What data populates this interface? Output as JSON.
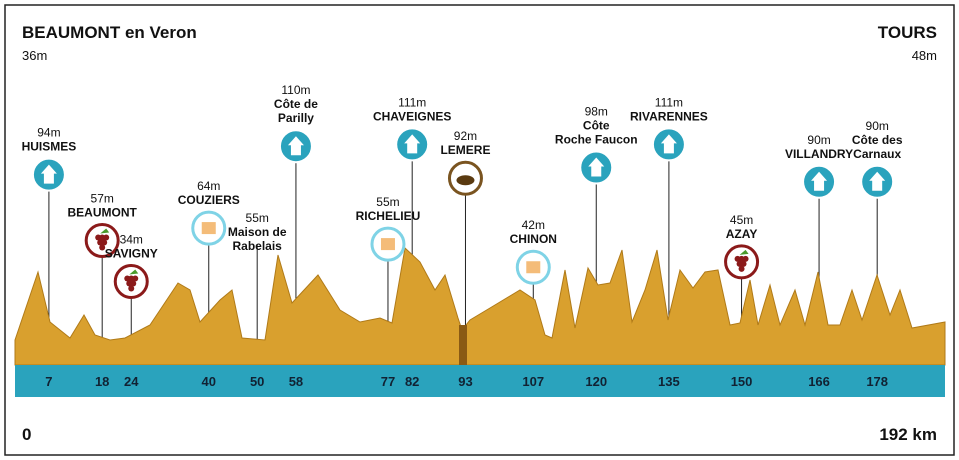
{
  "header": {
    "start_name": "BEAUMONT en Veron",
    "start_altitude": "36m",
    "finish_name": "TOURS",
    "finish_altitude": "48m"
  },
  "distance": {
    "start": "0",
    "finish": "192 km",
    "total": 192
  },
  "waypoints": [
    {
      "km": 7,
      "name": [
        "HUISMES"
      ],
      "altitude": 94,
      "altitude_label": "94m",
      "icon": "climb"
    },
    {
      "km": 18,
      "name": [
        "BEAUMONT"
      ],
      "altitude": 57,
      "altitude_label": "57m",
      "icon": "wine"
    },
    {
      "km": 24,
      "name": [
        "SAVIGNY"
      ],
      "altitude": 34,
      "altitude_label": "34m",
      "icon": "wine"
    },
    {
      "km": 40,
      "name": [
        "COUZIERS"
      ],
      "altitude": 64,
      "altitude_label": "64m",
      "icon": "logo"
    },
    {
      "km": 50,
      "name": [
        "Maison de",
        "Rabelais"
      ],
      "altitude": 55,
      "altitude_label": "55m",
      "icon": "none"
    },
    {
      "km": 58,
      "name": [
        "Côte de",
        "Parilly"
      ],
      "altitude": 110,
      "altitude_label": "110m",
      "icon": "climb"
    },
    {
      "km": 77,
      "name": [
        "RICHELIEU"
      ],
      "altitude": 55,
      "altitude_label": "55m",
      "icon": "logo"
    },
    {
      "km": 82,
      "name": [
        "CHAVEIGNES"
      ],
      "altitude": 111,
      "altitude_label": "111m",
      "icon": "climb"
    },
    {
      "km": 93,
      "name": [
        "LEMERE"
      ],
      "altitude": 92,
      "altitude_label": "92m",
      "icon": "food"
    },
    {
      "km": 107,
      "name": [
        "CHINON"
      ],
      "altitude": 42,
      "altitude_label": "42m",
      "icon": "logo"
    },
    {
      "km": 120,
      "name": [
        "Côte",
        "Roche Faucon"
      ],
      "altitude": 98,
      "altitude_label": "98m",
      "icon": "climb"
    },
    {
      "km": 135,
      "name": [
        "RIVARENNES"
      ],
      "altitude": 111,
      "altitude_label": "111m",
      "icon": "climb"
    },
    {
      "km": 150,
      "name": [
        "AZAY"
      ],
      "altitude": 45,
      "altitude_label": "45m",
      "icon": "wine"
    },
    {
      "km": 166,
      "name": [
        "VILLANDRY"
      ],
      "altitude": 90,
      "altitude_label": "90m",
      "icon": "climb"
    },
    {
      "km": 178,
      "name": [
        "Côte des",
        "Carnaux"
      ],
      "altitude": 90,
      "altitude_label": "90m",
      "icon": "climb"
    }
  ]
}
